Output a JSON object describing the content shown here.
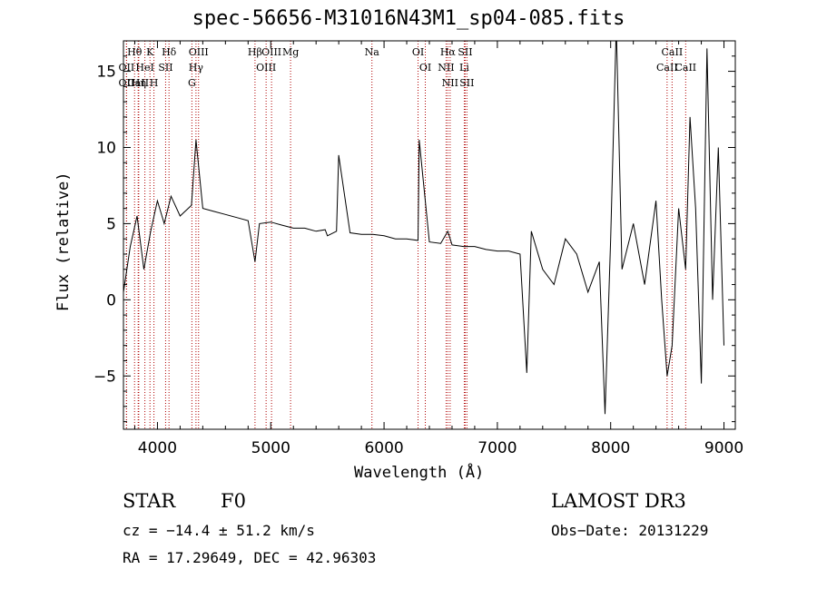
{
  "chart_data": {
    "type": "line",
    "title": "spec-56656-M31016N43M1_sp04-085.fits",
    "xlabel": "Wavelength (Å)",
    "ylabel": "Flux (relative)",
    "xlim": [
      3700,
      9100
    ],
    "ylim": [
      -8.5,
      17
    ],
    "xticks": [
      4000,
      5000,
      6000,
      7000,
      8000,
      9000
    ],
    "yticks": [
      0,
      5,
      10,
      15
    ],
    "ytick_labels": [
      "0",
      "5",
      "10",
      "15"
    ],
    "ytick_minus5": "−5",
    "x": [
      3700,
      3760,
      3820,
      3880,
      3940,
      4000,
      4060,
      4120,
      4200,
      4300,
      4340,
      4400,
      4500,
      4600,
      4700,
      4800,
      4861,
      4900,
      5000,
      5100,
      5200,
      5300,
      5400,
      5480,
      5500,
      5580,
      5600,
      5700,
      5800,
      5900,
      6000,
      6100,
      6200,
      6300,
      6310,
      6400,
      6500,
      6563,
      6600,
      6700,
      6800,
      6900,
      7000,
      7100,
      7200,
      7260,
      7300,
      7400,
      7500,
      7600,
      7700,
      7800,
      7900,
      7950,
      8000,
      8050,
      8100,
      8200,
      8300,
      8400,
      8450,
      8498,
      8542,
      8600,
      8662,
      8700,
      8750,
      8800,
      8850,
      8900,
      8950,
      9000
    ],
    "y": [
      0.5,
      3.5,
      5.5,
      2.0,
      4.5,
      6.5,
      5.0,
      6.8,
      5.5,
      6.2,
      10.5,
      6.0,
      5.8,
      5.6,
      5.4,
      5.2,
      2.5,
      5.0,
      5.1,
      4.9,
      4.7,
      4.7,
      4.5,
      4.6,
      4.2,
      4.5,
      9.5,
      4.4,
      4.3,
      4.3,
      4.2,
      4.0,
      4.0,
      3.9,
      10.5,
      3.8,
      3.7,
      4.5,
      3.6,
      3.5,
      3.5,
      3.3,
      3.2,
      3.2,
      3.0,
      -4.8,
      4.5,
      2.0,
      1.0,
      4.0,
      3.0,
      0.5,
      2.5,
      -7.5,
      4.0,
      18.0,
      2.0,
      5.0,
      1.0,
      6.5,
      0.0,
      -5.0,
      -3.0,
      6.0,
      2.0,
      12.0,
      6.0,
      -5.5,
      16.5,
      0.0,
      10.0,
      -3.0
    ],
    "spectral_lines": [
      {
        "label": "Hθ",
        "wavelength": 3798
      },
      {
        "label": "OII",
        "wavelength": 3727
      },
      {
        "label": "OII",
        "wavelength": 3727
      },
      {
        "label": "CaII",
        "wavelength": 3830
      },
      {
        "label": "Hη",
        "wavelength": 3835
      },
      {
        "label": "K",
        "wavelength": 3934
      },
      {
        "label": "HeI",
        "wavelength": 3889
      },
      {
        "label": "H",
        "wavelength": 3969
      },
      {
        "label": "Hδ",
        "wavelength": 4102
      },
      {
        "label": "SII",
        "wavelength": 4072
      },
      {
        "label": "OIII",
        "wavelength": 4363
      },
      {
        "label": "Hγ",
        "wavelength": 4340
      },
      {
        "label": "G",
        "wavelength": 4304
      },
      {
        "label": "OIII",
        "wavelength": 5007
      },
      {
        "label": "OIII",
        "wavelength": 4959
      },
      {
        "label": "Hβ",
        "wavelength": 4861
      },
      {
        "label": "Mg",
        "wavelength": 5175
      },
      {
        "label": "Na",
        "wavelength": 5893
      },
      {
        "label": "OI",
        "wavelength": 6300
      },
      {
        "label": "OI",
        "wavelength": 6364
      },
      {
        "label": "Hα",
        "wavelength": 6563
      },
      {
        "label": "NII",
        "wavelength": 6548
      },
      {
        "label": "NII",
        "wavelength": 6583
      },
      {
        "label": "SII",
        "wavelength": 6716
      },
      {
        "label": "Li",
        "wavelength": 6708
      },
      {
        "label": "SII",
        "wavelength": 6731
      },
      {
        "label": "CaII",
        "wavelength": 8542
      },
      {
        "label": "CaII",
        "wavelength": 8498
      },
      {
        "label": "CaII",
        "wavelength": 8662
      }
    ],
    "colors": {
      "spectrum": "#000000",
      "lines": "#b00000",
      "axes": "#000000"
    }
  },
  "info": {
    "object_class": "STAR",
    "subclass": "F0",
    "survey": "LAMOST DR3",
    "cz": "cz = −14.4 ± 51.2 km/s",
    "obs_date": "Obs−Date: 20131229",
    "coords": "RA =  17.29649, DEC =  42.96303"
  }
}
